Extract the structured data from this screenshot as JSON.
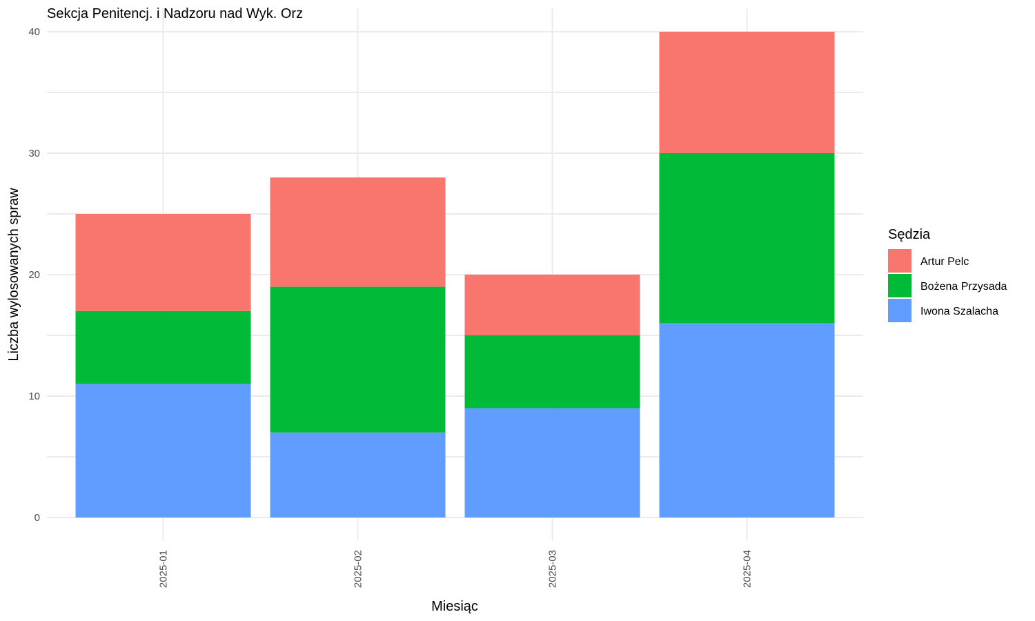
{
  "chart_data": {
    "type": "bar",
    "stacked": true,
    "title": "Sekcja Penitencj. i Nadzoru nad Wyk. Orz",
    "xlabel": "Miesiąc",
    "ylabel": "Liczba wylosowanych spraw",
    "ylim": [
      0,
      40
    ],
    "yticks": [
      0,
      10,
      20,
      30,
      40
    ],
    "categories": [
      "2025-01",
      "2025-02",
      "2025-03",
      "2025-04"
    ],
    "legend_title": "Sędzia",
    "legend_position": "right",
    "grid": true,
    "series": [
      {
        "name": "Artur Pelc",
        "color": "#F8766D",
        "values": [
          8,
          9,
          5,
          10
        ]
      },
      {
        "name": "Bożena Przysada",
        "color": "#00BA38",
        "values": [
          6,
          12,
          6,
          14
        ]
      },
      {
        "name": "Iwona Szalacha",
        "color": "#619CFF",
        "values": [
          11,
          7,
          9,
          16
        ]
      }
    ]
  }
}
